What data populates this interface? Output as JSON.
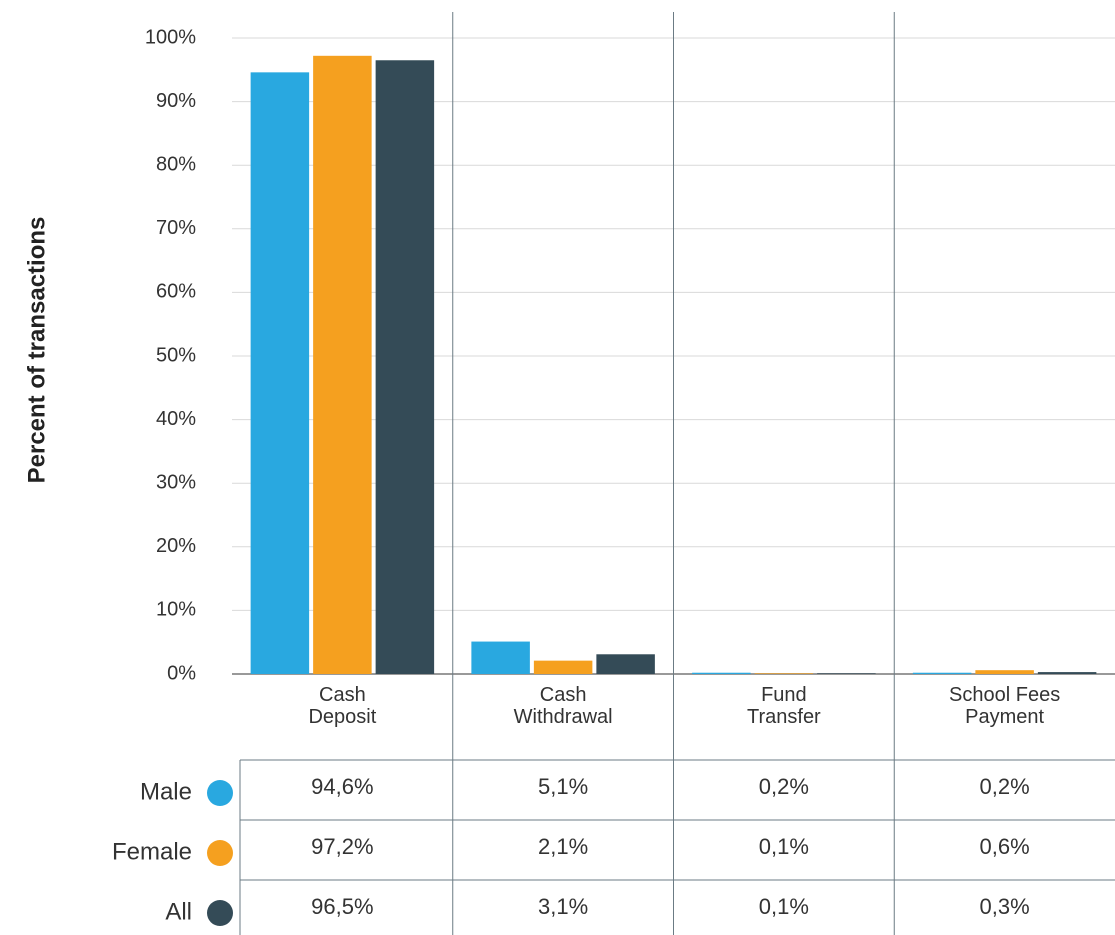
{
  "chart_data": {
    "type": "bar",
    "y_label": "Percent of transactions",
    "categories": [
      "Cash\nDeposit",
      "Cash\nWithdrawal",
      "Fund\nTransfer",
      "School Fees\nPayment"
    ],
    "series": [
      {
        "name": "Male",
        "color": "#29a8e0",
        "values": [
          94.6,
          5.1,
          0.2,
          0.2
        ],
        "value_labels": [
          "94,6%",
          "5,1%",
          "0,2%",
          "0,2%"
        ]
      },
      {
        "name": "Female",
        "color": "#f5a01f",
        "values": [
          97.2,
          2.1,
          0.1,
          0.6
        ],
        "value_labels": [
          "97,2%",
          "2,1%",
          "0,1%",
          "0,6%"
        ]
      },
      {
        "name": "All",
        "color": "#344b57",
        "values": [
          96.5,
          3.1,
          0.1,
          0.3
        ],
        "value_labels": [
          "96,5%",
          "3,1%",
          "0,1%",
          "0,3%"
        ]
      }
    ],
    "ylim": [
      0,
      100
    ],
    "yticks": [
      {
        "value": 0,
        "label": "0%"
      },
      {
        "value": 10,
        "label": "10%"
      },
      {
        "value": 20,
        "label": "20%"
      },
      {
        "value": 30,
        "label": "30%"
      },
      {
        "value": 40,
        "label": "40%"
      },
      {
        "value": 50,
        "label": "50%"
      },
      {
        "value": 60,
        "label": "60%"
      },
      {
        "value": 70,
        "label": "70%"
      },
      {
        "value": 80,
        "label": "80%"
      },
      {
        "value": 90,
        "label": "90%"
      },
      {
        "value": 100,
        "label": "100%"
      }
    ],
    "grid": true
  }
}
